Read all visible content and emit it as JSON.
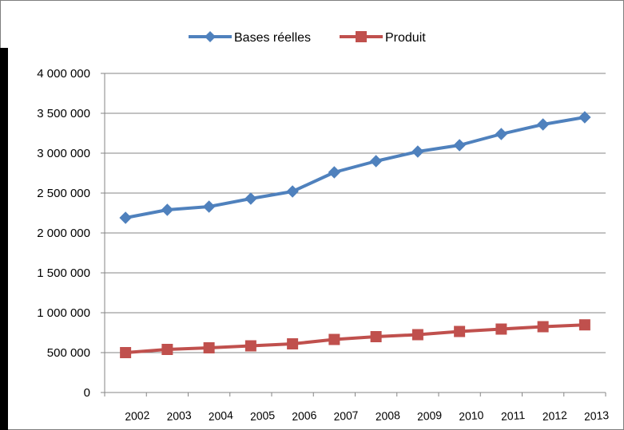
{
  "chart_data": {
    "type": "line",
    "title": "",
    "xlabel": "",
    "ylabel": "",
    "categories": [
      "2002",
      "2003",
      "2004",
      "2005",
      "2006",
      "2007",
      "2008",
      "2009",
      "2010",
      "2011",
      "2012",
      "2013"
    ],
    "y_ticks": [
      "0",
      "500 000",
      "1 000 000",
      "1 500 000",
      "2 000 000",
      "2 500 000",
      "3 000 000",
      "3 500 000",
      "4 000 000"
    ],
    "ylim": [
      0,
      4000000
    ],
    "grid": true,
    "legend_position": "top",
    "series": [
      {
        "name": "Bases réelles",
        "color": "#4f81bd",
        "marker": "diamond",
        "values": [
          2190000,
          2290000,
          2330000,
          2430000,
          2520000,
          2760000,
          2900000,
          3020000,
          3100000,
          3240000,
          3360000,
          3450000
        ]
      },
      {
        "name": "Produit",
        "color": "#c0504d",
        "marker": "square",
        "values": [
          500000,
          540000,
          560000,
          585000,
          610000,
          665000,
          700000,
          725000,
          765000,
          795000,
          825000,
          848000
        ]
      }
    ]
  }
}
